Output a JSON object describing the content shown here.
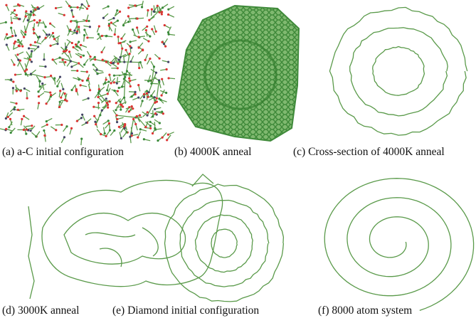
{
  "figure": {
    "panels": [
      {
        "caption": "(a) a-C initial configuration"
      },
      {
        "caption": "(b) 4000K anneal"
      },
      {
        "caption": "(c) Cross-section of 4000K anneal"
      },
      {
        "caption": "(d) 3000K anneal"
      },
      {
        "caption": "(e) Diamond initial configuration"
      },
      {
        "caption": "(f) 8000 atom system"
      }
    ]
  }
}
